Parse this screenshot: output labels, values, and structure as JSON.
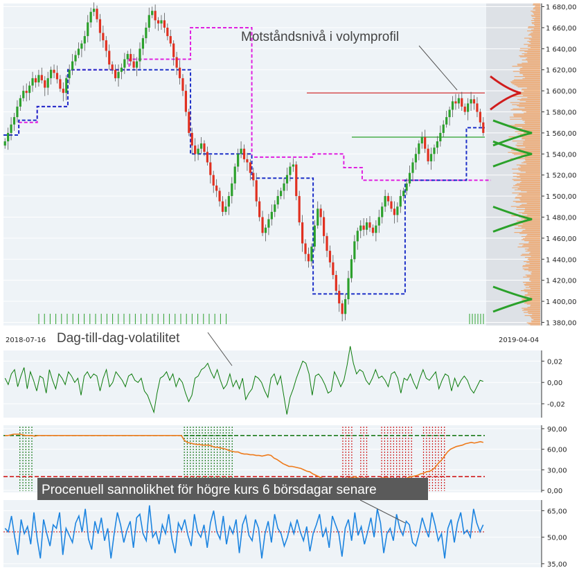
{
  "chart_data": [
    {
      "type": "candlestick",
      "panel": "price",
      "y_ticks": [
        "1 680,00",
        "1 660,00",
        "1 640,00",
        "1 620,00",
        "1 600,00",
        "1 580,00",
        "1 560,00",
        "1 540,00",
        "1 520,00",
        "1 500,00",
        "1 480,00",
        "1 460,00",
        "1 440,00",
        "1 420,00",
        "1 400,00",
        "1 380,00"
      ],
      "y_tick_values": [
        1680,
        1660,
        1640,
        1620,
        1600,
        1580,
        1560,
        1540,
        1520,
        1500,
        1480,
        1460,
        1440,
        1420,
        1400,
        1380
      ],
      "ylim": [
        1377,
        1683
      ],
      "x_start_label": "2018-07-16",
      "x_end_label": "2019-04-04",
      "closes": [
        1552,
        1560,
        1568,
        1575,
        1585,
        1593,
        1600,
        1598,
        1605,
        1612,
        1608,
        1615,
        1610,
        1603,
        1612,
        1620,
        1617,
        1611,
        1602,
        1598,
        1612,
        1620,
        1628,
        1634,
        1640,
        1645,
        1652,
        1665,
        1675,
        1678,
        1668,
        1655,
        1648,
        1638,
        1625,
        1620,
        1612,
        1618,
        1622,
        1630,
        1635,
        1628,
        1622,
        1628,
        1640,
        1650,
        1660,
        1672,
        1676,
        1667,
        1664,
        1667,
        1660,
        1652,
        1645,
        1632,
        1622,
        1612,
        1600,
        1580,
        1560,
        1548,
        1540,
        1545,
        1550,
        1542,
        1532,
        1520,
        1510,
        1505,
        1495,
        1485,
        1490,
        1500,
        1512,
        1528,
        1540,
        1545,
        1535,
        1532,
        1522,
        1515,
        1495,
        1480,
        1465,
        1470,
        1478,
        1485,
        1492,
        1500,
        1505,
        1512,
        1520,
        1528,
        1530,
        1500,
        1475,
        1455,
        1445,
        1438,
        1452,
        1472,
        1488,
        1480,
        1462,
        1448,
        1437,
        1425,
        1410,
        1398,
        1388,
        1402,
        1422,
        1440,
        1457,
        1467,
        1472,
        1468,
        1475,
        1470,
        1465,
        1472,
        1480,
        1490,
        1500,
        1495,
        1488,
        1482,
        1490,
        1500,
        1505,
        1512,
        1522,
        1532,
        1540,
        1550,
        1556,
        1545,
        1533,
        1540,
        1546,
        1552,
        1560,
        1568,
        1575,
        1582,
        1590,
        1588,
        1593,
        1585,
        1580,
        1588,
        1592,
        1588,
        1580,
        1570,
        1560
      ],
      "volatility_band_20d": [
        1558,
        1558,
        1558,
        1558,
        1558,
        1570,
        1570,
        1570,
        1570,
        1570,
        1570,
        1585,
        1585,
        1585,
        1585,
        1585,
        1585,
        1585,
        1585,
        1585,
        1585,
        1620,
        1620,
        1620,
        1620,
        1620,
        1620,
        1620,
        1620,
        1620,
        1620,
        1620,
        1620,
        1620,
        1620,
        1620,
        1620,
        1620,
        1620,
        1620,
        1620,
        1630,
        1630,
        1630,
        1630,
        1630,
        1630,
        1630,
        1630,
        1630,
        1630,
        1630,
        1630,
        1630,
        1630,
        1630,
        1630,
        1630,
        1630,
        1630,
        1630,
        1660,
        1660,
        1660,
        1660,
        1660,
        1660,
        1660,
        1660,
        1660,
        1660,
        1660,
        1660,
        1660,
        1660,
        1660,
        1660,
        1660,
        1660,
        1660,
        1660,
        1537,
        1537,
        1537,
        1537,
        1537,
        1537,
        1537,
        1537,
        1537,
        1537,
        1537,
        1537,
        1537,
        1537,
        1537,
        1537,
        1537,
        1537,
        1537,
        1537,
        1540,
        1540,
        1540,
        1540,
        1540,
        1540,
        1540,
        1540,
        1540,
        1540,
        1527,
        1527,
        1527,
        1527,
        1527,
        1527,
        1515,
        1515,
        1515,
        1515,
        1515,
        1515,
        1515,
        1515,
        1515,
        1515,
        1515,
        1515,
        1515,
        1515,
        1515,
        1515,
        1515,
        1515,
        1515,
        1515,
        1515,
        1515,
        1515,
        1515,
        1515,
        1515,
        1515,
        1515,
        1515,
        1515,
        1515,
        1515,
        1515,
        1515,
        1515,
        1515,
        1515,
        1515,
        1515,
        1515,
        1515,
        1515
      ],
      "support_line": [
        1558,
        1558,
        1558,
        1558,
        1558,
        1572,
        1572,
        1572,
        1572,
        1572,
        1572,
        1585,
        1585,
        1585,
        1585,
        1585,
        1585,
        1585,
        1585,
        1585,
        1585,
        1620,
        1620,
        1620,
        1620,
        1620,
        1620,
        1620,
        1620,
        1620,
        1620,
        1620,
        1620,
        1620,
        1620,
        1620,
        1620,
        1620,
        1620,
        1620,
        1620,
        1620,
        1620,
        1620,
        1620,
        1620,
        1620,
        1620,
        1620,
        1620,
        1620,
        1620,
        1620,
        1620,
        1620,
        1620,
        1620,
        1620,
        1620,
        1620,
        1620,
        1540,
        1540,
        1540,
        1540,
        1540,
        1540,
        1540,
        1540,
        1540,
        1540,
        1540,
        1540,
        1540,
        1540,
        1540,
        1540,
        1540,
        1540,
        1540,
        1540,
        1517,
        1517,
        1517,
        1517,
        1517,
        1517,
        1517,
        1517,
        1517,
        1517,
        1517,
        1517,
        1517,
        1517,
        1517,
        1517,
        1517,
        1517,
        1517,
        1517,
        1407,
        1407,
        1407,
        1407,
        1407,
        1407,
        1407,
        1407,
        1407,
        1407,
        1407,
        1407,
        1407,
        1407,
        1407,
        1407,
        1407,
        1407,
        1407,
        1407,
        1407,
        1407,
        1407,
        1407,
        1407,
        1407,
        1407,
        1407,
        1407,
        1407,
        1515,
        1515,
        1515,
        1515,
        1515,
        1515,
        1515,
        1515,
        1515,
        1515,
        1515,
        1515,
        1515,
        1515,
        1515,
        1515,
        1515,
        1515,
        1515,
        1515,
        1565,
        1565,
        1565,
        1565,
        1565,
        1565
      ],
      "volume_profile_levels": [
        1598,
        1560,
        1540,
        1478,
        1402
      ],
      "resistance_level": 1598,
      "support_level": 1556,
      "annotation": "Motståndsnivå i volymprofil"
    },
    {
      "type": "line",
      "panel": "volatility",
      "title": "Dag-till-dag-volatilitet",
      "y_ticks": [
        "0,02",
        "0,00",
        "-0,02"
      ],
      "y_tick_values": [
        0.02,
        0.0,
        -0.02
      ],
      "ylim": [
        -0.033,
        0.03
      ],
      "series": [
        0.004,
        -0.002,
        0.008,
        0.012,
        -0.004,
        0.006,
        0.014,
        -0.006,
        0.01,
        0.002,
        -0.008,
        0.006,
        0.004,
        -0.01,
        0.012,
        0.002,
        -0.006,
        0.008,
        0.004,
        -0.002,
        0.01,
        0.006,
        0.0,
        0.004,
        -0.012,
        0.006,
        0.01,
        0.004,
        0.008,
        0.006,
        -0.008,
        0.004,
        0.012,
        -0.004,
        0.0,
        0.01,
        0.006,
        0.002,
        -0.004,
        0.006,
        0.008,
        0.002,
        0.0,
        0.004,
        -0.008,
        -0.012,
        -0.02,
        -0.028,
        -0.01,
        0.004,
        0.006,
        0.01,
        0.002,
        0.008,
        -0.004,
        0.004,
        0.0,
        -0.01,
        -0.018,
        -0.012,
        0.004,
        0.006,
        0.012,
        0.014,
        0.018,
        0.01,
        0.004,
        0.012,
        0.002,
        -0.006,
        -0.002,
        0.008,
        -0.004,
        0.002,
        -0.006,
        0.004,
        -0.016,
        -0.01,
        -0.006,
        0.006,
        0.004,
        0.0,
        -0.008,
        -0.014,
        0.004,
        0.008,
        -0.002,
        0.006,
        -0.012,
        -0.03,
        -0.014,
        -0.006,
        0.004,
        0.012,
        0.02,
        0.018,
        0.008,
        -0.012,
        0.006,
        0.008,
        0.004,
        -0.002,
        -0.01,
        -0.008,
        0.01,
        0.004,
        -0.004,
        0.002,
        0.016,
        0.034,
        0.018,
        0.008,
        0.012,
        0.01,
        0.002,
        -0.002,
        0.004,
        0.012,
        0.004,
        0.006,
        0.002,
        -0.004,
        0.008,
        0.01,
        0.004,
        -0.01,
        0.004,
        0.002,
        0.008,
        0.0,
        -0.006,
        0.004,
        0.012,
        0.004,
        0.002,
        0.006,
        0.01,
        -0.006,
        0.002,
        0.008,
        0.006,
        -0.008,
        0.004,
        -0.004,
        0.002,
        0.006,
        0.002,
        -0.006,
        -0.01,
        -0.004,
        0.002,
        0.001
      ],
      "color": "#0a7a0a"
    },
    {
      "type": "line",
      "panel": "indicator",
      "y_ticks": [
        "90,00",
        "60,00",
        "30,00",
        "0,00"
      ],
      "y_tick_values": [
        90,
        60,
        30,
        0
      ],
      "ylim": [
        -3,
        95
      ],
      "upper_threshold": 80,
      "lower_threshold": 20,
      "series": [
        80,
        80,
        81,
        82,
        82,
        82,
        81,
        80,
        80,
        80,
        79,
        80,
        80,
        80,
        80,
        80,
        80,
        80,
        80,
        80,
        80,
        80,
        80,
        80,
        80,
        80,
        80,
        80,
        80,
        80,
        80,
        80,
        80,
        80,
        80,
        80,
        80,
        80,
        80,
        80,
        80,
        80,
        80,
        80,
        80,
        80,
        80,
        80,
        80,
        80,
        80,
        80,
        80,
        80,
        80,
        80,
        80,
        80,
        80,
        80,
        73,
        70,
        69,
        68,
        67,
        67,
        66,
        66,
        66,
        65,
        63,
        63,
        62,
        61,
        60,
        58,
        57,
        56,
        56,
        54,
        53,
        53,
        52,
        52,
        51,
        51,
        50,
        51,
        52,
        51,
        47,
        45,
        42,
        39,
        37,
        35,
        35,
        34,
        33,
        32,
        30,
        28,
        27,
        24,
        22,
        20,
        18,
        16,
        16,
        17,
        18,
        18,
        17,
        16,
        17,
        18,
        18,
        20,
        18,
        17,
        18,
        17,
        16,
        16,
        15,
        17,
        18,
        18,
        18,
        17,
        16,
        15,
        16,
        16,
        17,
        19,
        20,
        21,
        22,
        24,
        25,
        27,
        28,
        30,
        34,
        40,
        44,
        50,
        56,
        60,
        62,
        64,
        65,
        66,
        68,
        69,
        70,
        69,
        70,
        71,
        70
      ],
      "overbought_ranges": [
        [
          5,
          9
        ],
        [
          60,
          70
        ],
        [
          71,
          76
        ]
      ],
      "oversold_ranges": [
        [
          113,
          116
        ],
        [
          119,
          121
        ],
        [
          126,
          136
        ],
        [
          140,
          147
        ]
      ],
      "color": "#ee7a1a"
    },
    {
      "type": "line",
      "panel": "probability",
      "title": "Procenuell sannolikhet för högre kurs 6 börsdagar senare",
      "y_ticks": [
        "65,00",
        "50,00",
        "35,00"
      ],
      "y_tick_values": [
        65,
        50,
        35
      ],
      "ylim": [
        33,
        71
      ],
      "reference_level": 53,
      "series": [
        55,
        53,
        62,
        50,
        40,
        60,
        52,
        56,
        46,
        64,
        49,
        38,
        60,
        52,
        45,
        57,
        55,
        64,
        40,
        55,
        51,
        47,
        58,
        62,
        53,
        66,
        49,
        43,
        59,
        52,
        61,
        48,
        55,
        38,
        52,
        64,
        57,
        47,
        54,
        59,
        44,
        61,
        63,
        52,
        48,
        68,
        50,
        53,
        46,
        57,
        52,
        63,
        49,
        41,
        58,
        54,
        60,
        51,
        45,
        63,
        53,
        50,
        57,
        44,
        58,
        65,
        53,
        49,
        62,
        46,
        56,
        52,
        60,
        41,
        57,
        62,
        51,
        48,
        60,
        55,
        38,
        52,
        59,
        47,
        63,
        55,
        52,
        45,
        50,
        58,
        52,
        60,
        53,
        48,
        56,
        42,
        52,
        57,
        63,
        50,
        55,
        44,
        62,
        57,
        52,
        39,
        55,
        60,
        48,
        64,
        51,
        56,
        46,
        53,
        61,
        50,
        66,
        58,
        41,
        52,
        55,
        48,
        63,
        55,
        51,
        59,
        57,
        47,
        45,
        52,
        61,
        55,
        50,
        64,
        57,
        48,
        52,
        38,
        55,
        60,
        47,
        58,
        64,
        52,
        54,
        50,
        66,
        58,
        53,
        57
      ]
    }
  ],
  "colors": {
    "background": "#eef3f7",
    "grid": "#ffffff",
    "up_candle": "#2ca02c",
    "down_candle": "#e03020",
    "resistance_line": "#d01c1c",
    "support_line": "#2aa12a",
    "blue_dashed": "#1c2fc8",
    "magenta_dashed": "#e020e0",
    "volume_profile": "#f0a060",
    "volume_profile_bg": "#d8dde3",
    "volatility": "#0a7a0a",
    "indicator": "#ee7a1a",
    "probability": "#1c84e0",
    "threshold_green": "#1a7a1a",
    "threshold_red": "#d01c1c"
  }
}
